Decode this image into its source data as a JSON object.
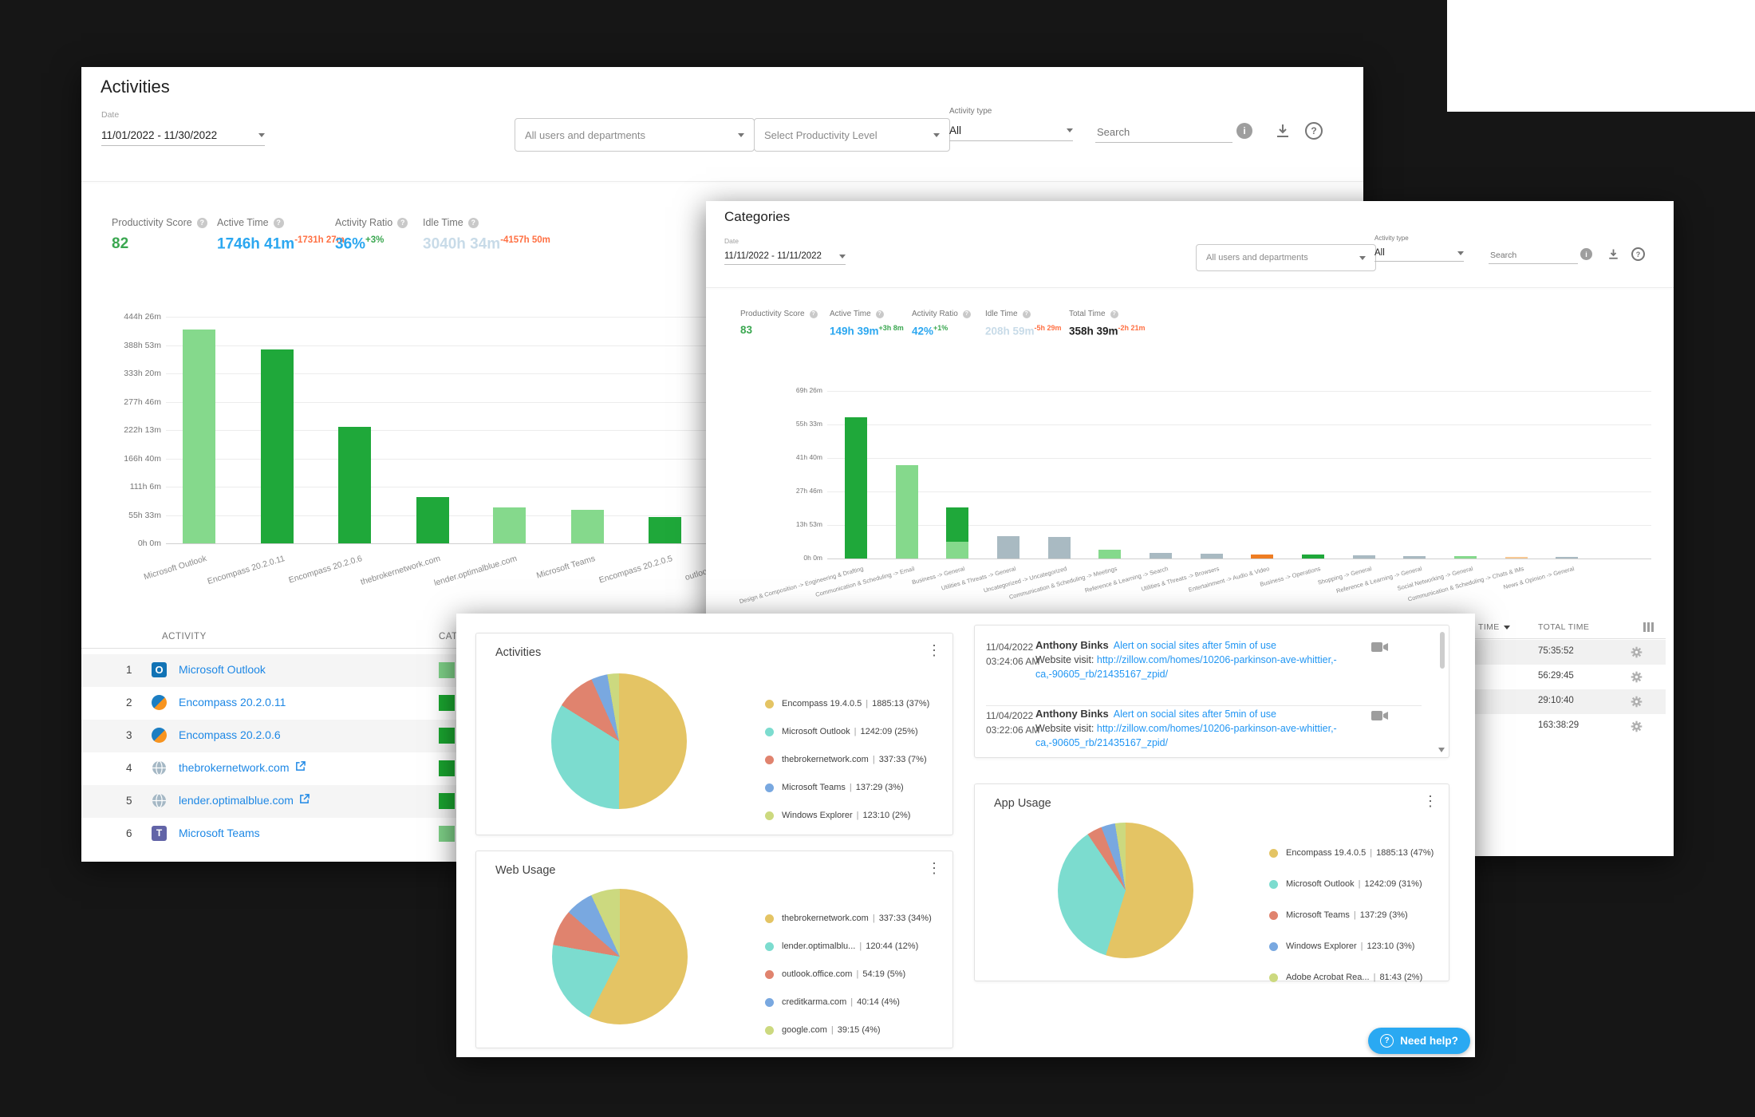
{
  "palette": {
    "bar_dark_green": "#1fa83a",
    "bar_light_green": "#85d98c",
    "bar_gray": "#a9bac2",
    "bar_orange": "#ee7d23",
    "bar_light_orange": "#f8c995",
    "link_blue": "#1e88e5",
    "accent_blue": "#2aa9f2",
    "pie_yellow": "#e4c464",
    "pie_teal": "#7cdccf",
    "pie_salmon": "#e0836e",
    "pie_blue": "#79a8e0",
    "pie_green": "#ccd97f"
  },
  "activities_panel": {
    "title": "Activities",
    "date_label": "Date",
    "date_value": "11/01/2022 - 11/30/2022",
    "filters": {
      "users_dropdown": "All users and departments",
      "productivity_dropdown": "Select Productivity Level",
      "activity_type_label": "Activity type",
      "activity_type_value": "All",
      "search_placeholder": "Search"
    },
    "metrics": [
      {
        "label": "Productivity Score",
        "value": "82",
        "value_color": "#3aa750",
        "delta": "",
        "delta_color": ""
      },
      {
        "label": "Active Time",
        "value": "1746h 41m",
        "value_color": "#2ba7f0",
        "delta": "-1731h 27m",
        "delta_color": "#ff7043"
      },
      {
        "label": "Activity Ratio",
        "value": "36%",
        "value_color": "#2ba7f0",
        "delta": "+3%",
        "delta_color": "#3aa750"
      },
      {
        "label": "Idle Time",
        "value": "3040h 34m",
        "value_color": "#c8dbe8",
        "delta": "-4157h 50m",
        "delta_color": "#ff7043"
      }
    ],
    "chart": {
      "type": "bar",
      "ymax_hours": 444.43,
      "grid": true,
      "yticks": [
        "444h 26m",
        "388h 53m",
        "333h 20m",
        "277h 46m",
        "222h 13m",
        "166h 40m",
        "111h 6m",
        "55h 33m",
        "0h 0m"
      ],
      "bars": [
        {
          "label": "Microsoft Outlook",
          "hours": 420,
          "color": "#85d98c"
        },
        {
          "label": "Encompass 20.2.0.11",
          "hours": 380,
          "color": "#1fa83a"
        },
        {
          "label": "Encompass 20.2.0.6",
          "hours": 228,
          "color": "#1fa83a"
        },
        {
          "label": "thebrokernetwork.com",
          "hours": 90,
          "color": "#1fa83a"
        },
        {
          "label": "lender.optimalblue.com",
          "hours": 70,
          "color": "#85d98c"
        },
        {
          "label": "Microsoft Teams",
          "hours": 65,
          "color": "#85d98c"
        },
        {
          "label": "Encompass 20.2.0.5",
          "hours": 52,
          "color": "#1fa83a"
        },
        {
          "label": "outlook.office.com",
          "hours": 40,
          "color": "#1fa83a"
        }
      ]
    },
    "table": {
      "activity_header": "ACTIVITY",
      "category_header": "CATEGORY",
      "rows": [
        {
          "rank": "1",
          "icon": "outlook-icon",
          "name": "Microsoft Outlook",
          "external": false,
          "category_color": "#7ed087"
        },
        {
          "rank": "2",
          "icon": "encompass-icon",
          "name": "Encompass 20.2.0.11",
          "external": false,
          "category_color": "#1aa42f"
        },
        {
          "rank": "3",
          "icon": "encompass-icon",
          "name": "Encompass 20.2.0.6",
          "external": false,
          "category_color": "#1aa42f"
        },
        {
          "rank": "4",
          "icon": "globe-icon",
          "name": "thebrokernetwork.com",
          "external": true,
          "category_color": "#1aa42f"
        },
        {
          "rank": "5",
          "icon": "globe-icon",
          "name": "lender.optimalblue.com",
          "external": true,
          "category_color": "#1aa42f"
        },
        {
          "rank": "6",
          "icon": "teams-icon",
          "name": "Microsoft Teams",
          "external": false,
          "category_color": "#7ed087"
        }
      ]
    }
  },
  "categories_panel": {
    "title": "Categories",
    "date_label": "Date",
    "date_value": "11/11/2022 - 11/11/2022",
    "filters": {
      "users_dropdown": "All users and departments",
      "activity_type_label": "Activity type",
      "activity_type_value": "All",
      "search_placeholder": "Search"
    },
    "metrics": [
      {
        "label": "Productivity Score",
        "value": "83",
        "value_color": "#3aa750",
        "delta": "",
        "delta_color": ""
      },
      {
        "label": "Active Time",
        "value": "149h 39m",
        "value_color": "#2ba7f0",
        "delta": "+3h 8m",
        "delta_color": "#3aa750"
      },
      {
        "label": "Activity Ratio",
        "value": "42%",
        "value_color": "#2ba7f0",
        "delta": "+1%",
        "delta_color": "#3aa750"
      },
      {
        "label": "Idle Time",
        "value": "208h 59m",
        "value_color": "#c8dbe8",
        "delta": "-5h 29m",
        "delta_color": "#ff7043"
      },
      {
        "label": "Total Time",
        "value": "358h 39m",
        "value_color": "#212121",
        "delta": "-2h 21m",
        "delta_color": "#ff7043"
      }
    ],
    "chart": {
      "type": "bar",
      "ymax_hours": 69.43,
      "grid": true,
      "yticks": [
        "69h 26m",
        "55h 33m",
        "41h 40m",
        "27h 46m",
        "13h 53m",
        "0h 0m"
      ],
      "bars": [
        {
          "label": "Design & Composition -> Engineering & Drafting",
          "segments": [
            {
              "hours": 58.5,
              "color": "#1fa83a"
            }
          ]
        },
        {
          "label": "Communication & Scheduling -> Email",
          "segments": [
            {
              "hours": 38.7,
              "color": "#85d98c"
            }
          ]
        },
        {
          "label": "Business -> General",
          "segments": [
            {
              "hours": 6.9,
              "color": "#85d98c"
            },
            {
              "hours": 14.3,
              "color": "#1fa83a"
            }
          ]
        },
        {
          "label": "Utilities & Threats -> General",
          "segments": [
            {
              "hours": 9.3,
              "color": "#a9bac2"
            }
          ]
        },
        {
          "label": "Uncategorized -> Uncategorized",
          "segments": [
            {
              "hours": 8.9,
              "color": "#a9bac2"
            }
          ]
        },
        {
          "label": "Communication & Scheduling -> Meetings",
          "segments": [
            {
              "hours": 3.6,
              "color": "#85d98c"
            }
          ]
        },
        {
          "label": "Reference & Learning -> Search",
          "segments": [
            {
              "hours": 2.3,
              "color": "#a9bac2"
            }
          ]
        },
        {
          "label": "Utilities & Threats -> Browsers",
          "segments": [
            {
              "hours": 2.0,
              "color": "#a9bac2"
            }
          ]
        },
        {
          "label": "Entertainment -> Audio & Video",
          "segments": [
            {
              "hours": 1.6,
              "color": "#ee7d23"
            }
          ]
        },
        {
          "label": "Business -> Operations",
          "segments": [
            {
              "hours": 1.5,
              "color": "#1fa83a"
            }
          ]
        },
        {
          "label": "Shopping -> General",
          "segments": [
            {
              "hours": 1.2,
              "color": "#a9bac2"
            }
          ]
        },
        {
          "label": "Reference & Learning -> General",
          "segments": [
            {
              "hours": 1.0,
              "color": "#a9bac2"
            }
          ]
        },
        {
          "label": "Social Networking -> General",
          "segments": [
            {
              "hours": 1.0,
              "color": "#85d98c"
            }
          ]
        },
        {
          "label": "Communication & Scheduling -> Chats & IMs",
          "segments": [
            {
              "hours": 0.8,
              "color": "#f8c995"
            }
          ]
        },
        {
          "label": "News & Opinion -> General",
          "segments": [
            {
              "hours": 0.7,
              "color": "#a9bac2"
            }
          ]
        }
      ]
    },
    "side_table": {
      "time_header": "TIME",
      "total_header": "TOTAL TIME",
      "rows": [
        {
          "total_time": "75:35:52"
        },
        {
          "total_time": "56:29:45"
        },
        {
          "total_time": "29:10:40"
        },
        {
          "total_time": "163:38:29"
        }
      ]
    }
  },
  "overview_panel": {
    "activities_card": {
      "title": "Activities",
      "slices": [
        {
          "color": "#e4c464",
          "deg": 180
        },
        {
          "color": "#7cdccf",
          "deg": 122
        },
        {
          "color": "#e0836e",
          "deg": 34
        },
        {
          "color": "#79a8e0",
          "deg": 14
        },
        {
          "color": "#ccd97f",
          "deg": 10
        }
      ],
      "legend": [
        {
          "color": "#e4c464",
          "label": "Encompass 19.4.0.5",
          "value": "1885:13",
          "pct": "37%"
        },
        {
          "color": "#7cdccf",
          "label": "Microsoft Outlook",
          "value": "1242:09",
          "pct": "25%"
        },
        {
          "color": "#e0836e",
          "label": "thebrokernetwork.com",
          "value": "337:33",
          "pct": "7%"
        },
        {
          "color": "#79a8e0",
          "label": "Microsoft Teams",
          "value": "137:29",
          "pct": "3%"
        },
        {
          "color": "#ccd97f",
          "label": "Windows Explorer",
          "value": "123:10",
          "pct": "2%"
        }
      ]
    },
    "web_card": {
      "title": "Web Usage",
      "slices": [
        {
          "color": "#e4c464",
          "deg": 207
        },
        {
          "color": "#7cdccf",
          "deg": 73
        },
        {
          "color": "#e0836e",
          "deg": 31
        },
        {
          "color": "#79a8e0",
          "deg": 24
        },
        {
          "color": "#ccd97f",
          "deg": 25
        }
      ],
      "legend": [
        {
          "color": "#e4c464",
          "label": "thebrokernetwork.com",
          "value": "337:33",
          "pct": "34%"
        },
        {
          "color": "#7cdccf",
          "label": "lender.optimalblu...",
          "value": "120:44",
          "pct": "12%"
        },
        {
          "color": "#e0836e",
          "label": "outlook.office.com",
          "value": "54:19",
          "pct": "5%"
        },
        {
          "color": "#79a8e0",
          "label": "creditkarma.com",
          "value": "40:14",
          "pct": "4%"
        },
        {
          "color": "#ccd97f",
          "label": "google.com",
          "value": "39:15",
          "pct": "4%"
        }
      ]
    },
    "app_card": {
      "title": "App Usage",
      "slices": [
        {
          "color": "#e4c464",
          "deg": 197
        },
        {
          "color": "#7cdccf",
          "deg": 129
        },
        {
          "color": "#e0836e",
          "deg": 13
        },
        {
          "color": "#79a8e0",
          "deg": 12
        },
        {
          "color": "#ccd97f",
          "deg": 9
        }
      ],
      "legend": [
        {
          "color": "#e4c464",
          "label": "Encompass 19.4.0.5",
          "value": "1885:13",
          "pct": "47%"
        },
        {
          "color": "#7cdccf",
          "label": "Microsoft Outlook",
          "value": "1242:09",
          "pct": "31%"
        },
        {
          "color": "#e0836e",
          "label": "Microsoft Teams",
          "value": "137:29",
          "pct": "3%"
        },
        {
          "color": "#79a8e0",
          "label": "Windows Explorer",
          "value": "123:10",
          "pct": "3%"
        },
        {
          "color": "#ccd97f",
          "label": "Adobe Acrobat Rea...",
          "value": "81:43",
          "pct": "2%"
        }
      ]
    },
    "alerts": [
      {
        "date": "11/04/2022",
        "time": "03:24:06 AM",
        "name": "Anthony Binks",
        "alert": "Alert on social sites after 5min of use",
        "body": "Website visit: ",
        "url": "http://zillow.com/homes/10206-parkinson-ave-whittier,-ca,-90605_rb/21435167_zpid/"
      },
      {
        "date": "11/04/2022",
        "time": "03:22:06 AM",
        "name": "Anthony Binks",
        "alert": "Alert on social sites after 5min of use",
        "body": "Website visit: ",
        "url": "http://zillow.com/homes/10206-parkinson-ave-whittier,-ca,-90605_rb/21435167_zpid/"
      }
    ],
    "need_help_label": "Need help?"
  }
}
